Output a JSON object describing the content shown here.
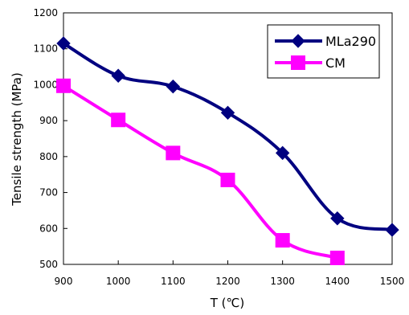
{
  "chart_data": {
    "type": "line",
    "title": "",
    "xlabel": "T (℃)",
    "ylabel": "Tensile strength (MPa)",
    "xlim": [
      900,
      1500
    ],
    "ylim": [
      500,
      1200
    ],
    "x_ticks": [
      900,
      1000,
      1100,
      1200,
      1300,
      1400,
      1500
    ],
    "y_ticks": [
      500,
      600,
      700,
      800,
      900,
      1000,
      1100,
      1200
    ],
    "grid": false,
    "legend_position": "top-right",
    "series": [
      {
        "name": "MLa290",
        "color": "#000080",
        "marker": "diamond",
        "x": [
          900,
          1000,
          1100,
          1200,
          1300,
          1400,
          1500
        ],
        "y": [
          1115,
          1025,
          995,
          922,
          810,
          628,
          596
        ]
      },
      {
        "name": "CM",
        "color": "#FF00FF",
        "marker": "square",
        "x": [
          900,
          1000,
          1100,
          1200,
          1300,
          1400
        ],
        "y": [
          997,
          902,
          810,
          735,
          567,
          518
        ]
      }
    ]
  }
}
